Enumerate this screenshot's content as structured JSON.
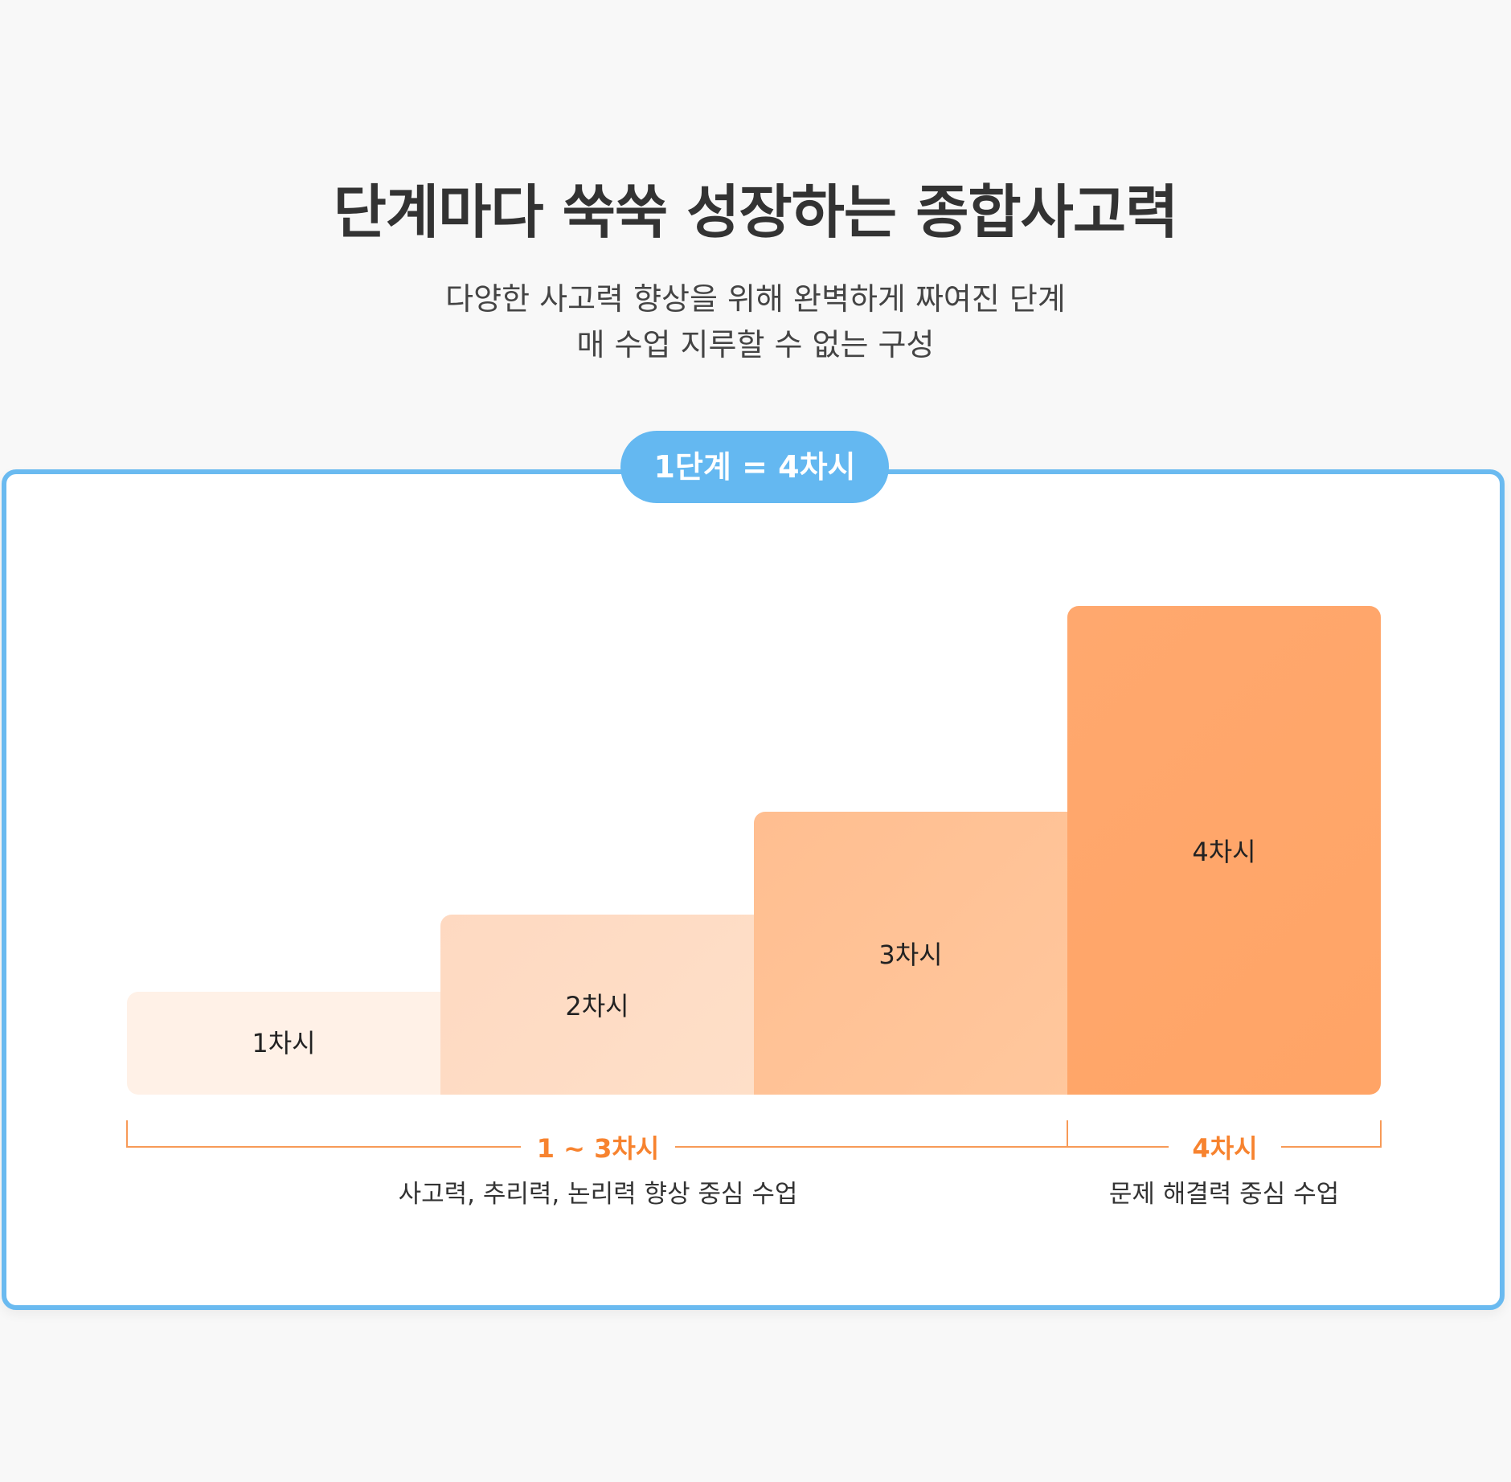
{
  "header": {
    "title": "단계마다 쑥쑥 성장하는 종합사고력",
    "subtitle_line1": "다양한 사고력 향상을 위해 완벽하게 짜여진 단계",
    "subtitle_line2": "매 수업 지루할 수 없는 구성"
  },
  "card": {
    "badge": "1단계 = 4차시"
  },
  "steps": [
    {
      "label": "1차시",
      "level": 1,
      "color": "#fff1e7"
    },
    {
      "label": "2차시",
      "level": 2,
      "color": "#fedcc4"
    },
    {
      "label": "3차시",
      "level": 3,
      "color": "#ffc295"
    },
    {
      "label": "4차시",
      "level": 4,
      "color": "#ffa66a"
    }
  ],
  "groups": [
    {
      "label": "1 ~ 3차시",
      "description": "사고력, 추리력, 논리력 향상 중심 수업"
    },
    {
      "label": "4차시",
      "description": "문제 해결력 중심 수업"
    }
  ],
  "colors": {
    "accent_blue": "#64b8f1",
    "accent_orange": "#f7832f",
    "background": "#f8f8f8"
  }
}
